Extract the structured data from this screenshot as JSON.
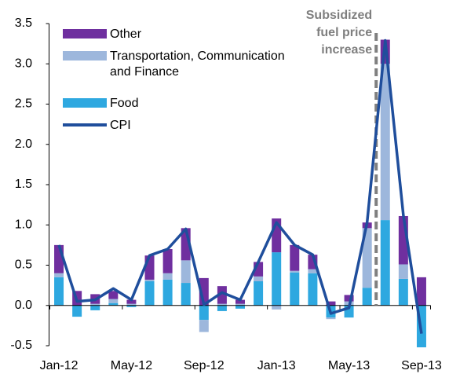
{
  "chart_data": {
    "type": "bar",
    "categories": [
      "Jan-12",
      null,
      null,
      null,
      "May-12",
      null,
      null,
      null,
      "Sep-12",
      null,
      null,
      null,
      "Jan-13",
      null,
      null,
      null,
      "May-13",
      null,
      null,
      null,
      "Sep-13"
    ],
    "series": [
      {
        "name": "Food",
        "color": "#2ea8e0",
        "values": [
          0.35,
          -0.14,
          -0.06,
          0.03,
          -0.02,
          0.3,
          0.32,
          0.28,
          -0.18,
          -0.07,
          -0.04,
          0.3,
          0.66,
          0.41,
          0.4,
          -0.15,
          -0.15,
          0.22,
          1.06,
          0.33,
          -0.52
        ]
      },
      {
        "name": "Transportation, Communication and Finance",
        "color": "#9db7dc",
        "values": [
          0.05,
          0,
          0.02,
          0.05,
          0.02,
          0.02,
          0.08,
          0.28,
          -0.15,
          0.02,
          0.02,
          0.06,
          -0.05,
          0.02,
          0.05,
          -0.02,
          0.05,
          0.74,
          1.94,
          0.18,
          0
        ]
      },
      {
        "name": "Other",
        "color": "#6f2f9f",
        "values": [
          0.35,
          0.18,
          0.12,
          0.1,
          0.05,
          0.3,
          0.3,
          0.4,
          0.34,
          0.22,
          0.05,
          0.18,
          0.42,
          0.32,
          0.18,
          0.05,
          0.08,
          0.07,
          0.3,
          0.6,
          0.35
        ]
      },
      {
        "name": "CPI",
        "type": "line",
        "color": "#1f4e9c",
        "values": [
          0.75,
          0.05,
          0.07,
          0.21,
          0.07,
          0.62,
          0.7,
          0.95,
          0.01,
          0.16,
          0.07,
          0.54,
          1.03,
          0.75,
          0.63,
          -0.1,
          -0.03,
          1.03,
          3.29,
          1.12,
          -0.35
        ]
      }
    ],
    "annotation": [
      "Subsidized",
      "fuel price",
      "increase"
    ],
    "ylim": [
      -0.5,
      3.5
    ],
    "yticks": [
      -0.5,
      {
        "value": 0,
        "label": "0.0"
      },
      0.5,
      {
        "value": 1,
        "label": "1.0"
      },
      1.5,
      {
        "value": 2,
        "label": "2.0"
      },
      2.5,
      {
        "value": 3,
        "label": "3.0"
      },
      3.5
    ],
    "grid": false
  }
}
